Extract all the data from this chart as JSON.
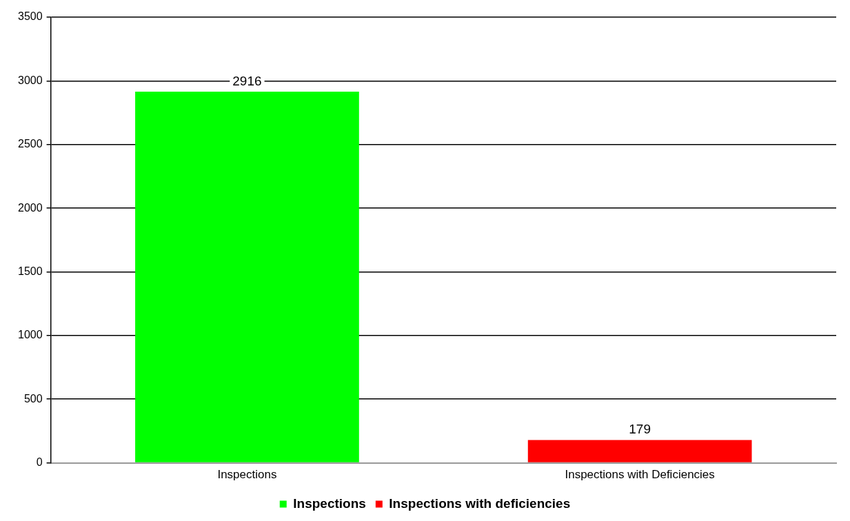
{
  "chart_data": {
    "type": "bar",
    "categories": [
      "Inspections",
      "Inspections with Deficiencies"
    ],
    "series": [
      {
        "name": "Inspections",
        "color": "#00ff00",
        "values": [
          2916,
          null
        ]
      },
      {
        "name": "Inspections with deficiencies",
        "color": "#ff0000",
        "values": [
          null,
          179
        ]
      }
    ],
    "ylim": [
      0,
      3500
    ],
    "yticks": [
      0,
      500,
      1000,
      1500,
      2000,
      2500,
      3000,
      3500
    ],
    "grid": "y",
    "legend": "bottom",
    "data_labels": true
  }
}
